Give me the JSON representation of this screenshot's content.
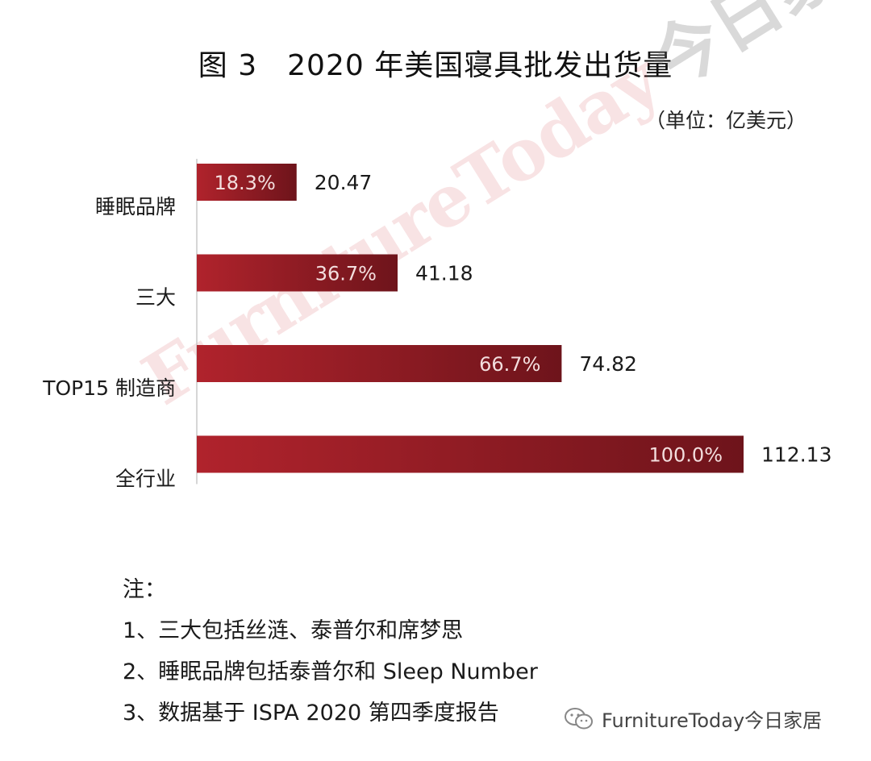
{
  "title": "图 3　2020 年美国寝具批发出货量",
  "unit": "（单位：亿美元）",
  "chart_data": {
    "type": "bar",
    "orientation": "horizontal",
    "title": "图 3　2020 年美国寝具批发出货量",
    "unit": "（单位：亿美元）",
    "categories": [
      "睡眠品牌",
      "三大",
      "TOP15 制造商",
      "全行业"
    ],
    "values": [
      20.47,
      41.18,
      74.82,
      112.13
    ],
    "percent_labels": [
      "18.3%",
      "36.7%",
      "66.7%",
      "100.0%"
    ],
    "value_labels": [
      "20.47",
      "41.18",
      "74.82",
      "112.13"
    ],
    "xlim": [
      0,
      112.13
    ],
    "grid": false,
    "bar_color": "#8b1a22"
  },
  "watermark": {
    "en": "FurnitureToday",
    "cn": "今日家居"
  },
  "notes": {
    "heading": "注：",
    "items": [
      "1、三大包括丝涟、泰普尔和席梦思",
      "2、睡眠品牌包括泰普尔和 Sleep Number",
      "3、数据基于 ISPA 2020 第四季度报告"
    ]
  },
  "footer": {
    "icon": "wechat-icon",
    "text": "FurnitureToday今日家居"
  }
}
